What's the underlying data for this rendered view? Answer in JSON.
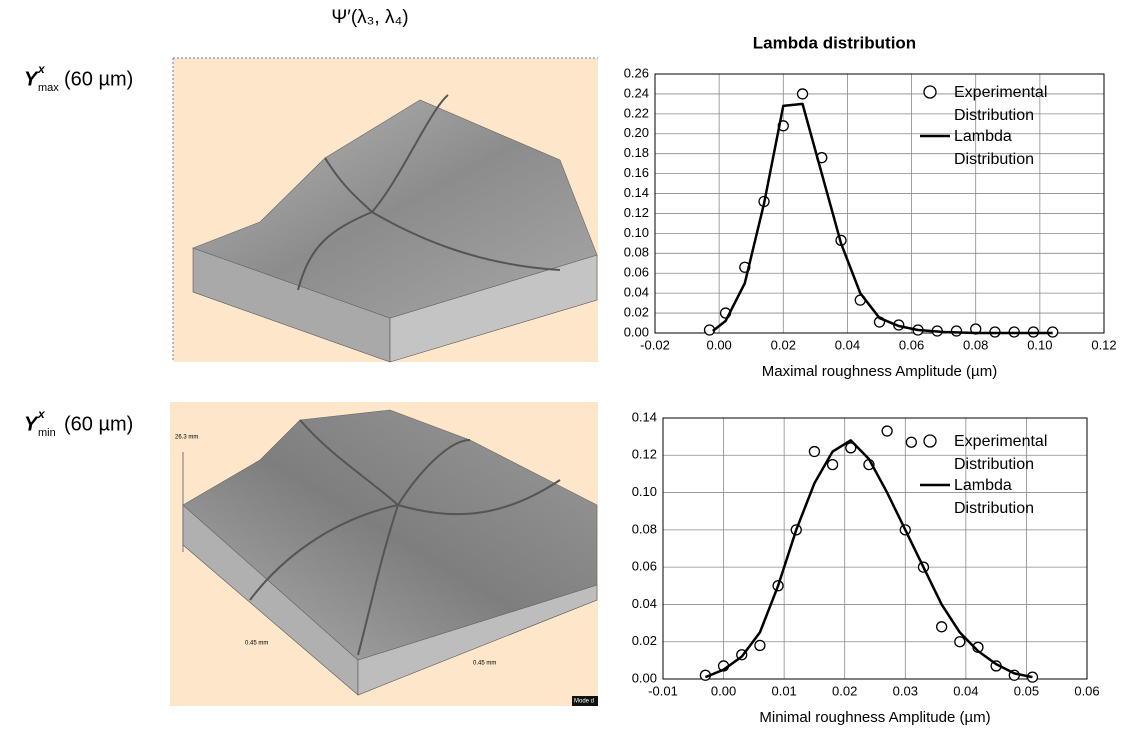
{
  "column_header": "Ψ′(λ₃, λ₄)",
  "row_labels": [
    {
      "base": "Y",
      "sup": "x",
      "sub": "max",
      "argument": "(60 µm)"
    },
    {
      "base": "Y",
      "sup": "x",
      "sub": "min",
      "argument": "(60 µm)"
    }
  ],
  "surface_labels": {
    "height": "26.3 mm",
    "width_left": "0.45 mm",
    "width_right": "0.45 mm",
    "corner": "Mode d"
  },
  "chart_data": [
    {
      "type": "line",
      "title": "Lambda distribution",
      "x_label": "Maximal roughness Amplitude (µm)",
      "xlim": [
        -0.02,
        0.12
      ],
      "ylim": [
        0,
        0.26
      ],
      "xticks": [
        -0.02,
        {
          "value": 0,
          "label": "0.00"
        },
        0.02,
        0.04,
        0.06,
        0.08,
        {
          "value": 0.1,
          "label": "0.10"
        },
        0.12
      ],
      "yticks": [
        {
          "value": 0,
          "label": "0.00"
        },
        0.02,
        0.04,
        0.06,
        0.08,
        {
          "value": 0.1,
          "label": "0.10"
        },
        0.12,
        0.14,
        0.16,
        0.18,
        {
          "value": 0.2,
          "label": "0.20"
        },
        0.22,
        0.24,
        0.26
      ],
      "grid": true,
      "series": [
        {
          "name": "Experimental Distribution",
          "type": "scatter",
          "color": "#000000",
          "x": [
            -0.003,
            0.002,
            0.008,
            0.014,
            0.02,
            0.026,
            0.032,
            0.038,
            0.044,
            0.05,
            0.056,
            0.062,
            0.068,
            0.074,
            0.08,
            0.086,
            0.092,
            0.098,
            0.104
          ],
          "values": [
            0.003,
            0.02,
            0.066,
            0.132,
            0.208,
            0.24,
            0.176,
            0.093,
            0.033,
            0.011,
            0.008,
            0.003,
            0.002,
            0.002,
            0.004,
            0.001,
            0.001,
            0.001,
            0.001
          ]
        },
        {
          "name": "Lambda Distribution",
          "type": "line",
          "color": "#000000",
          "x": [
            -0.002,
            0.002,
            0.008,
            0.014,
            0.02,
            0.026,
            0.032,
            0.038,
            0.044,
            0.05,
            0.056,
            0.062,
            0.07,
            0.08,
            0.104
          ],
          "values": [
            0.002,
            0.012,
            0.05,
            0.13,
            0.228,
            0.23,
            0.16,
            0.09,
            0.04,
            0.015,
            0.007,
            0.003,
            0.001,
            0,
            0
          ]
        }
      ]
    },
    {
      "type": "line",
      "x_label": "Minimal roughness Amplitude (µm)",
      "xlim": [
        -0.01,
        0.06
      ],
      "ylim": [
        0,
        0.14
      ],
      "xticks": [
        -0.01,
        {
          "value": 0,
          "label": "0.00"
        },
        0.01,
        0.02,
        0.03,
        0.04,
        0.05,
        0.06
      ],
      "yticks": [
        {
          "value": 0,
          "label": "0.00"
        },
        0.02,
        0.04,
        0.06,
        0.08,
        {
          "value": 0.1,
          "label": "0.10"
        },
        0.12,
        0.14
      ],
      "grid": true,
      "series": [
        {
          "name": "Experimental Distribution",
          "type": "scatter",
          "color": "#000000",
          "x": [
            -0.003,
            0.0,
            0.003,
            0.006,
            0.009,
            0.012,
            0.015,
            0.018,
            0.021,
            0.024,
            0.027,
            0.031,
            0.03,
            0.033,
            0.036,
            0.039,
            0.042,
            0.045,
            0.048,
            0.051
          ],
          "values": [
            0.002,
            0.007,
            0.013,
            0.018,
            0.05,
            0.08,
            0.122,
            0.115,
            0.124,
            0.115,
            0.133,
            0.127,
            0.08,
            0.06,
            0.028,
            0.02,
            0.017,
            0.007,
            0.002,
            0.001
          ]
        },
        {
          "name": "Lambda Distribution",
          "type": "line",
          "color": "#000000",
          "x": [
            -0.003,
            0.0,
            0.003,
            0.006,
            0.009,
            0.012,
            0.015,
            0.018,
            0.021,
            0.024,
            0.027,
            0.03,
            0.033,
            0.036,
            0.039,
            0.042,
            0.045,
            0.048,
            0.051
          ],
          "values": [
            0.001,
            0.005,
            0.012,
            0.025,
            0.05,
            0.08,
            0.105,
            0.122,
            0.128,
            0.118,
            0.1,
            0.08,
            0.06,
            0.04,
            0.025,
            0.015,
            0.008,
            0.003,
            0.001
          ]
        }
      ]
    }
  ]
}
